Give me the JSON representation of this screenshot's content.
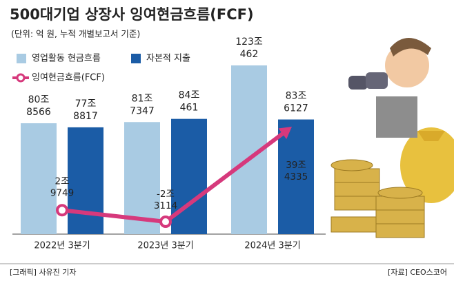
{
  "chart_data": {
    "type": "bar",
    "title": "500대기업 상장사 잉여현금흐름(FCF)",
    "subtitle": "(단위: 억 원, 누적 개별보고서 기준)",
    "categories": [
      "2022년 3분기",
      "2023년 3분기",
      "2024년 3분기"
    ],
    "series": [
      {
        "name": "영업활동 현금흐름",
        "color": "#a9cbe3",
        "values": [
          808566,
          817347,
          1230462
        ],
        "value_labels": [
          [
            "80조",
            "8566"
          ],
          [
            "81조",
            "7347"
          ],
          [
            "123조",
            "462"
          ]
        ]
      },
      {
        "name": "자본적 지출",
        "color": "#1b5ca6",
        "values": [
          778817,
          840461,
          836127
        ],
        "value_labels": [
          [
            "77조",
            "8817"
          ],
          [
            "84조",
            "461"
          ],
          [
            "83조",
            "6127"
          ]
        ]
      },
      {
        "name": "잉여현금흐름(FCF)",
        "type": "line",
        "color": "#d6397c",
        "values": [
          29749,
          -23114,
          394335
        ],
        "value_labels": [
          [
            "2조",
            "9749"
          ],
          [
            "-2조",
            "3114"
          ],
          [
            "39조",
            "4335"
          ]
        ]
      }
    ],
    "credit": "[그래픽] 사유진 기자",
    "source": "[자료] CEO스코어"
  }
}
